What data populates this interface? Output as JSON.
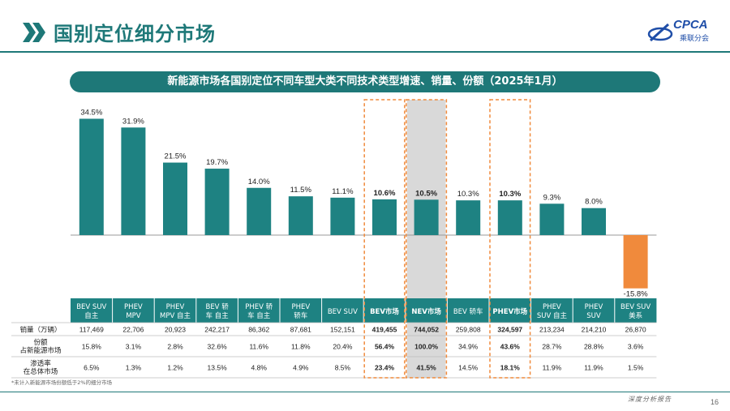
{
  "header": {
    "title": "国别定位细分市场",
    "logo_text": "CPCA",
    "logo_sub": "乘联分会",
    "accent_color": "#1e7878"
  },
  "banner": {
    "text": "新能源市场各国别定位不同车型大类不同技术类型增速、销量、份额（2025年1月）"
  },
  "chart_data": {
    "type": "bar",
    "title": "新能源市场各国别定位不同车型大类不同技术类型增速、销量、份额（2025年1月）",
    "categories": [
      "BEV SUV 自主",
      "PHEV MPV",
      "PHEV MPV 自主",
      "BEV 轿车 自主",
      "PHEV 轿车 自主",
      "PHEV 轿车",
      "BEV SUV",
      "BEV市场",
      "NEV市场",
      "BEV 轿车",
      "PHEV市场",
      "PHEV SUV 自主",
      "PHEV SUV",
      "BEV SUV 美系"
    ],
    "values": [
      34.5,
      31.9,
      21.5,
      19.7,
      14.0,
      11.5,
      11.1,
      10.6,
      10.5,
      10.3,
      10.3,
      9.3,
      8.0,
      -15.8
    ],
    "labels": [
      "34.5%",
      "31.9%",
      "21.5%",
      "19.7%",
      "14.0%",
      "11.5%",
      "11.1%",
      "10.6%",
      "10.5%",
      "10.3%",
      "10.3%",
      "9.3%",
      "8.0%",
      "-15.8%"
    ],
    "bold_indices": [
      7,
      8,
      10
    ],
    "bar_color": "#1e8282",
    "negative_color": "#f08a3c",
    "highlight_box_color": "#f08a3c",
    "nev_shade_color": "#d9d9d9",
    "ylim": [
      -16,
      36
    ],
    "grid": false
  },
  "table": {
    "header_color": "#1e8282",
    "columns": [
      "BEV SUV 自主",
      "PHEV MPV",
      "PHEV MPV 自主",
      "BEV 轿车 自主",
      "PHEV 轿车 自主",
      "PHEV 轿车",
      "BEV SUV",
      "BEV市场",
      "NEV市场",
      "BEV 轿车",
      "PHEV市场",
      "PHEV SUV 自主",
      "PHEV SUV",
      "BEV SUV 美系"
    ],
    "column_lines": [
      [
        "BEV SUV",
        "自主"
      ],
      [
        "PHEV",
        "MPV"
      ],
      [
        "PHEV",
        "MPV 自主"
      ],
      [
        "BEV 轿",
        "车 自主"
      ],
      [
        "PHEV 轿",
        "车 自主"
      ],
      [
        "PHEV",
        "轿车"
      ],
      [
        "BEV SUV"
      ],
      [
        "BEV市场"
      ],
      [
        "NEV市场"
      ],
      [
        "BEV 轿车"
      ],
      [
        "PHEV市场"
      ],
      [
        "PHEV",
        "SUV 自主"
      ],
      [
        "PHEV",
        "SUV"
      ],
      [
        "BEV SUV",
        "美系"
      ]
    ],
    "rows": [
      {
        "label": [
          "销量（万辆）"
        ],
        "values": [
          "117,469",
          "22,706",
          "20,923",
          "242,217",
          "86,362",
          "87,681",
          "152,151",
          "419,455",
          "744,052",
          "259,808",
          "324,597",
          "213,234",
          "214,210",
          "26,870"
        ]
      },
      {
        "label": [
          "份额",
          "占新能源市场"
        ],
        "values": [
          "15.8%",
          "3.1%",
          "2.8%",
          "32.6%",
          "11.6%",
          "11.8%",
          "20.4%",
          "56.4%",
          "100.0%",
          "34.9%",
          "43.6%",
          "28.7%",
          "28.8%",
          "3.6%"
        ]
      },
      {
        "label": [
          "渗透率",
          "在总体市场"
        ],
        "values": [
          "6.5%",
          "1.3%",
          "1.2%",
          "13.5%",
          "4.8%",
          "4.9%",
          "8.5%",
          "23.4%",
          "41.5%",
          "14.5%",
          "18.1%",
          "11.9%",
          "11.9%",
          "1.5%"
        ]
      }
    ]
  },
  "footnote": "*未计入新能源市场份额低于2%的细分市场",
  "footer": {
    "text": "深度分析报告",
    "page_number": "16"
  }
}
